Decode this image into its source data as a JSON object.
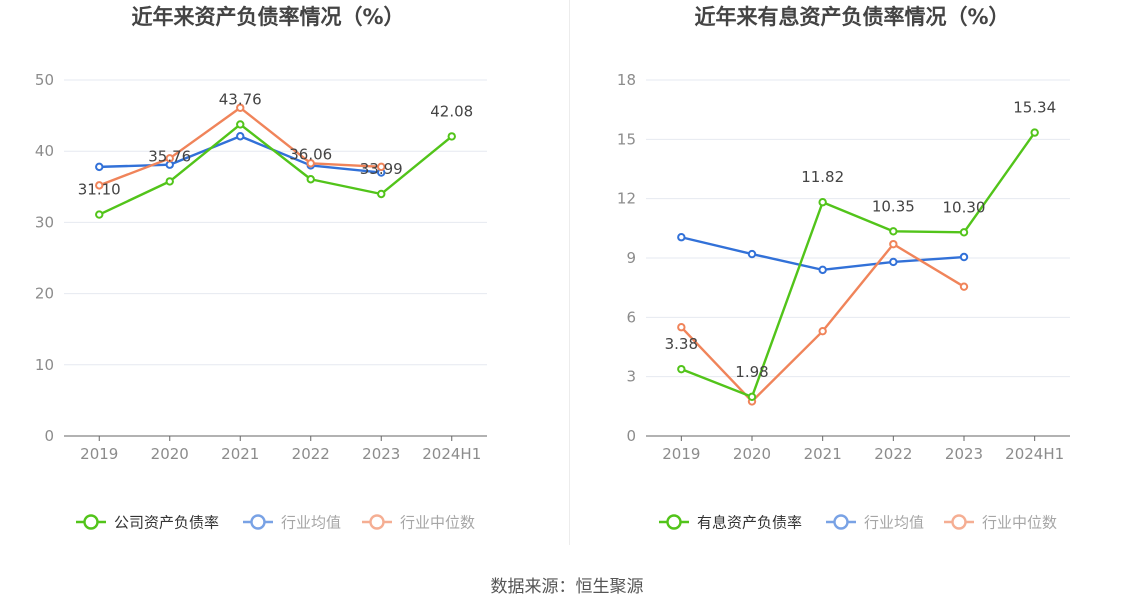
{
  "colors": {
    "company": "#52c41a",
    "avg": "#3271d8",
    "median": "#f0845a",
    "grid": "#e6e9f0",
    "axis": "#666666",
    "tick": "#8c8c8c",
    "title": "#444444",
    "label": "#444444"
  },
  "source": "数据来源：恒生聚源",
  "chart_data": [
    {
      "type": "line",
      "title": "近年来资产负债率情况（%）",
      "categories": [
        "2019",
        "2020",
        "2021",
        "2022",
        "2023",
        "2024H1"
      ],
      "ylim": [
        0,
        50
      ],
      "yticks": [
        0,
        10,
        20,
        30,
        40,
        50
      ],
      "series": [
        {
          "name": "公司资产负债率",
          "key": "company",
          "values": [
            31.1,
            35.76,
            43.76,
            36.06,
            33.99,
            42.08
          ],
          "labels": [
            "31.10",
            "35.76",
            "43.76",
            "36.06",
            "33.99",
            "42.08"
          ]
        },
        {
          "name": "行业均值",
          "key": "avg",
          "values": [
            37.8,
            38.1,
            42.1,
            38.0,
            37.0,
            null
          ]
        },
        {
          "name": "行业中位数",
          "key": "median",
          "values": [
            35.2,
            39.0,
            46.1,
            38.3,
            37.8,
            null
          ]
        }
      ],
      "legend": "bottom"
    },
    {
      "type": "line",
      "title": "近年来有息资产负债率情况（%）",
      "categories": [
        "2019",
        "2020",
        "2021",
        "2022",
        "2023",
        "2024H1"
      ],
      "ylim": [
        0,
        18
      ],
      "yticks": [
        0,
        3,
        6,
        9,
        12,
        15,
        18
      ],
      "series": [
        {
          "name": "有息资产负债率",
          "key": "company",
          "values": [
            3.38,
            1.98,
            11.82,
            10.35,
            10.3,
            15.34
          ],
          "labels": [
            "3.38",
            "1.98",
            "11.82",
            "10.35",
            "10.30",
            "15.34"
          ]
        },
        {
          "name": "行业均值",
          "key": "avg",
          "values": [
            10.05,
            9.2,
            8.4,
            8.8,
            9.05,
            null
          ]
        },
        {
          "name": "行业中位数",
          "key": "median",
          "values": [
            5.5,
            1.75,
            5.3,
            9.7,
            7.55,
            null
          ]
        }
      ],
      "legend": "bottom"
    }
  ]
}
